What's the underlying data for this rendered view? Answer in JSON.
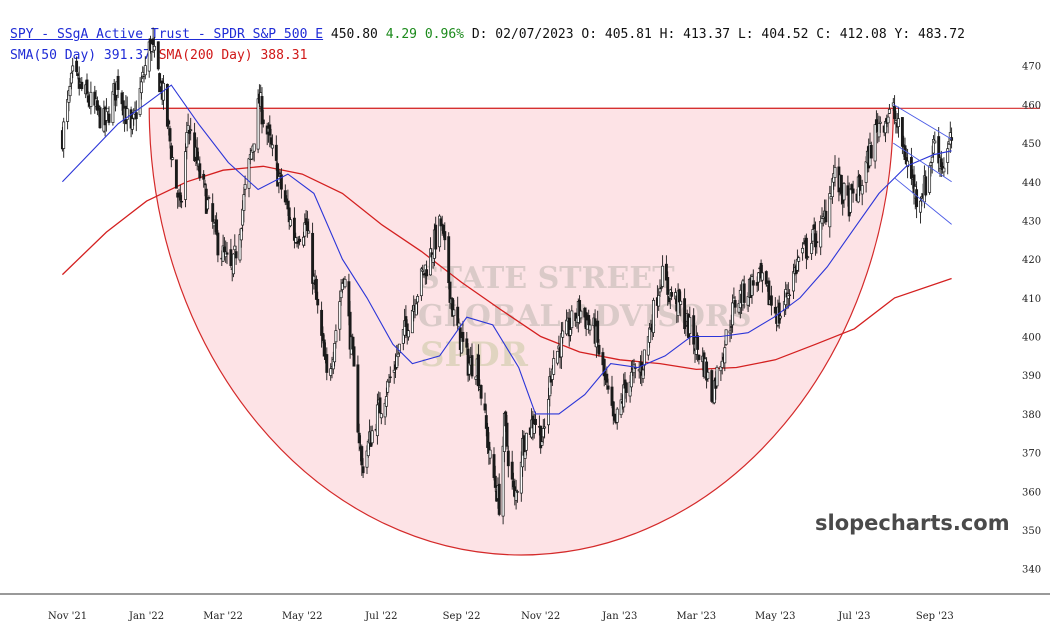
{
  "header": {
    "ticker": "SPY - SSgA Active Trust - SPDR S&P 500 E",
    "last": "450.80",
    "change": "4.29",
    "change_pct": "0.96%",
    "date": "D: 02/07/2023",
    "open": "O: 405.81",
    "high": "H: 413.37",
    "low": "L: 404.52",
    "close": "C: 412.08",
    "yoy": "Y: 483.72",
    "sma50": "SMA(50 Day) 391.37",
    "sma200": "SMA(200 Day) 388.31"
  },
  "watermark": "slopecharts.com",
  "background_logo": [
    "STATE STREET",
    "GLOBAL ADVISORS",
    "SPDR"
  ],
  "colors": {
    "sma50": "#2b35d8",
    "sma200": "#d42020",
    "bowl_fill": "#fde3e6",
    "bowl_stroke": "#d42a2a",
    "candle": "#1a1a1a",
    "channel": "#4a5ae6"
  },
  "chart_data": {
    "type": "candlestick",
    "y_axis_side": "right",
    "ylim": [
      335,
      472
    ],
    "y_ticks": [
      340,
      350,
      360,
      370,
      380,
      390,
      400,
      410,
      420,
      430,
      440,
      450,
      460,
      470
    ],
    "x_ticks": [
      "Nov '21",
      "Jan '22",
      "Mar '22",
      "May '22",
      "Jul '22",
      "Sep '22",
      "Nov '22",
      "Jan '23",
      "Mar '23",
      "May '23",
      "Jul '23",
      "Sep '23"
    ],
    "price_path": [
      [
        "2021-10-28",
        452
      ],
      [
        "2021-11-05",
        467
      ],
      [
        "2021-11-30",
        455
      ],
      [
        "2021-12-10",
        466
      ],
      [
        "2021-12-20",
        452
      ],
      [
        "2022-01-04",
        476
      ],
      [
        "2022-01-14",
        462
      ],
      [
        "2022-01-27",
        432
      ],
      [
        "2022-02-02",
        455
      ],
      [
        "2022-02-10",
        443
      ],
      [
        "2022-02-24",
        425
      ],
      [
        "2022-03-08",
        416
      ],
      [
        "2022-03-29",
        461
      ],
      [
        "2022-04-08",
        447
      ],
      [
        "2022-04-25",
        426
      ],
      [
        "2022-05-04",
        429
      ],
      [
        "2022-05-20",
        389
      ],
      [
        "2022-05-25",
        397
      ],
      [
        "2022-06-02",
        417
      ],
      [
        "2022-06-10",
        390
      ],
      [
        "2022-06-16",
        366
      ],
      [
        "2022-06-28",
        380
      ],
      [
        "2022-07-08",
        389
      ],
      [
        "2022-07-28",
        411
      ],
      [
        "2022-08-16",
        429
      ],
      [
        "2022-08-26",
        405
      ],
      [
        "2022-09-06",
        393
      ],
      [
        "2022-09-13",
        393
      ],
      [
        "2022-09-23",
        368
      ],
      [
        "2022-09-30",
        357
      ],
      [
        "2022-10-04",
        377
      ],
      [
        "2022-10-12",
        357
      ],
      [
        "2022-10-18",
        372
      ],
      [
        "2022-10-27",
        379
      ],
      [
        "2022-11-03",
        373
      ],
      [
        "2022-11-10",
        394
      ],
      [
        "2022-12-01",
        407
      ],
      [
        "2022-12-13",
        401
      ],
      [
        "2022-12-28",
        376
      ],
      [
        "2023-01-06",
        388
      ],
      [
        "2023-01-18",
        392
      ],
      [
        "2023-02-02",
        416
      ],
      [
        "2023-02-07",
        412
      ],
      [
        "2023-02-16",
        408
      ],
      [
        "2023-03-08",
        392
      ],
      [
        "2023-03-13",
        385
      ],
      [
        "2023-03-31",
        409
      ],
      [
        "2023-04-18",
        415
      ],
      [
        "2023-05-04",
        405
      ],
      [
        "2023-05-19",
        420
      ],
      [
        "2023-06-06",
        428
      ],
      [
        "2023-06-15",
        442
      ],
      [
        "2023-06-26",
        434
      ],
      [
        "2023-07-06",
        439
      ],
      [
        "2023-07-19",
        455
      ],
      [
        "2023-07-31",
        458
      ],
      [
        "2023-08-10",
        446
      ],
      [
        "2023-08-18",
        436
      ],
      [
        "2023-08-25",
        439
      ],
      [
        "2023-09-01",
        451
      ],
      [
        "2023-09-07",
        444
      ],
      [
        "2023-09-14",
        451
      ]
    ],
    "sma50": [
      [
        "2021-10-28",
        440
      ],
      [
        "2021-12-10",
        455
      ],
      [
        "2021-12-31",
        460
      ],
      [
        "2022-01-20",
        465
      ],
      [
        "2022-02-10",
        455
      ],
      [
        "2022-03-05",
        445
      ],
      [
        "2022-03-28",
        438
      ],
      [
        "2022-04-20",
        442
      ],
      [
        "2022-05-10",
        437
      ],
      [
        "2022-06-01",
        420
      ],
      [
        "2022-06-20",
        410
      ],
      [
        "2022-07-10",
        398
      ],
      [
        "2022-07-25",
        393
      ],
      [
        "2022-08-15",
        395
      ],
      [
        "2022-09-05",
        405
      ],
      [
        "2022-09-25",
        403
      ],
      [
        "2022-10-15",
        392
      ],
      [
        "2022-10-28",
        380
      ],
      [
        "2022-11-15",
        380
      ],
      [
        "2022-12-05",
        385
      ],
      [
        "2022-12-25",
        393
      ],
      [
        "2023-01-15",
        392
      ],
      [
        "2023-02-05",
        395
      ],
      [
        "2023-02-25",
        400
      ],
      [
        "2023-03-20",
        400
      ],
      [
        "2023-04-10",
        401
      ],
      [
        "2023-04-30",
        405
      ],
      [
        "2023-05-20",
        410
      ],
      [
        "2023-06-10",
        418
      ],
      [
        "2023-07-01",
        428
      ],
      [
        "2023-07-20",
        437
      ],
      [
        "2023-08-10",
        444
      ],
      [
        "2023-08-31",
        447
      ],
      [
        "2023-09-14",
        448
      ]
    ],
    "sma200": [
      [
        "2021-10-28",
        416
      ],
      [
        "2021-12-01",
        427
      ],
      [
        "2022-01-01",
        435
      ],
      [
        "2022-02-01",
        440
      ],
      [
        "2022-03-01",
        443
      ],
      [
        "2022-04-01",
        444
      ],
      [
        "2022-05-01",
        442
      ],
      [
        "2022-06-01",
        437
      ],
      [
        "2022-07-01",
        429
      ],
      [
        "2022-08-01",
        422
      ],
      [
        "2022-09-01",
        414
      ],
      [
        "2022-10-01",
        407
      ],
      [
        "2022-11-01",
        400
      ],
      [
        "2022-12-01",
        396
      ],
      [
        "2023-01-01",
        394
      ],
      [
        "2023-02-01",
        393
      ],
      [
        "2023-03-01",
        391.5
      ],
      [
        "2023-04-01",
        392
      ],
      [
        "2023-05-01",
        394
      ],
      [
        "2023-06-01",
        398
      ],
      [
        "2023-07-01",
        402
      ],
      [
        "2023-08-01",
        410
      ],
      [
        "2023-09-14",
        415
      ]
    ],
    "annotations": {
      "bowl": {
        "start": "2022-01-03",
        "end": "2023-07-31",
        "top": 459,
        "bottom": 343.5
      },
      "resistance_level": 459,
      "channel_upper": [
        [
          "2023-07-31",
          460
        ],
        [
          "2023-09-14",
          451
        ]
      ],
      "channel_mid": [
        [
          "2023-07-31",
          450
        ],
        [
          "2023-09-14",
          440
        ]
      ],
      "channel_lower": [
        [
          "2023-08-01",
          441
        ],
        [
          "2023-09-14",
          429
        ]
      ]
    }
  }
}
